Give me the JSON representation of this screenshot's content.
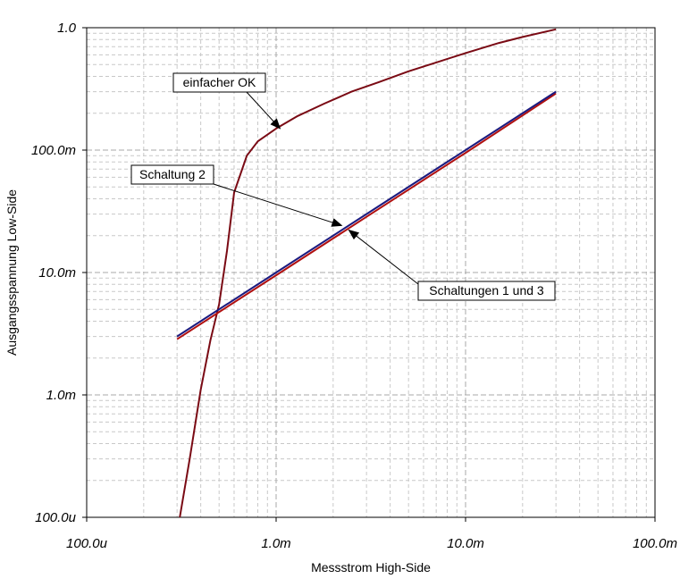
{
  "chart_data": {
    "type": "line",
    "title": "",
    "xlabel": "Messstrom High-Side",
    "ylabel": "Ausgangsspannung Low-Side",
    "x_scale": "log",
    "y_scale": "log",
    "xlim": [
      0.0001,
      0.1
    ],
    "ylim": [
      0.0001,
      1.0
    ],
    "grid": true,
    "x_ticks": [
      {
        "value": 0.0001,
        "label": "100.0u"
      },
      {
        "value": 0.001,
        "label": "1.0m"
      },
      {
        "value": 0.01,
        "label": "10.0m"
      },
      {
        "value": 0.1,
        "label": "100.0m"
      }
    ],
    "y_ticks": [
      {
        "value": 0.0001,
        "label": "100.0u"
      },
      {
        "value": 0.001,
        "label": "1.0m"
      },
      {
        "value": 0.01,
        "label": "10.0m"
      },
      {
        "value": 0.1,
        "label": "100.0m"
      },
      {
        "value": 1.0,
        "label": "1.0"
      }
    ],
    "series": [
      {
        "color": "#7a0a14",
        "x": [
          0.00031,
          0.00035,
          0.0004,
          0.00045,
          0.0005,
          0.00055,
          0.0006,
          0.0007,
          0.0008,
          0.001,
          0.0013,
          0.0018,
          0.0025,
          0.0035,
          0.005,
          0.007,
          0.01,
          0.015,
          0.02,
          0.03
        ],
        "y": [
          0.0001,
          0.0003,
          0.0011,
          0.0028,
          0.0055,
          0.015,
          0.045,
          0.09,
          0.118,
          0.15,
          0.19,
          0.24,
          0.3,
          0.36,
          0.44,
          0.52,
          0.62,
          0.75,
          0.84,
          0.97
        ]
      },
      {
        "color": "#b01010",
        "x": [
          0.0003,
          0.001,
          0.003,
          0.01,
          0.03
        ],
        "y": [
          0.00285,
          0.0095,
          0.0285,
          0.095,
          0.29
        ]
      },
      {
        "color": "#1a1a80",
        "x": [
          0.0003,
          0.001,
          0.003,
          0.01,
          0.03
        ],
        "y": [
          0.003,
          0.01,
          0.03,
          0.1,
          0.3
        ]
      }
    ],
    "annotations": [
      {
        "text": "einfacher OK",
        "target": [
          0.00105,
          0.15
        ]
      },
      {
        "text": "Schaltung 2",
        "target": [
          0.00222,
          0.0242
        ]
      },
      {
        "text": "Schaltungen 1 und 3",
        "target": [
          0.00242,
          0.0222
        ]
      }
    ]
  }
}
